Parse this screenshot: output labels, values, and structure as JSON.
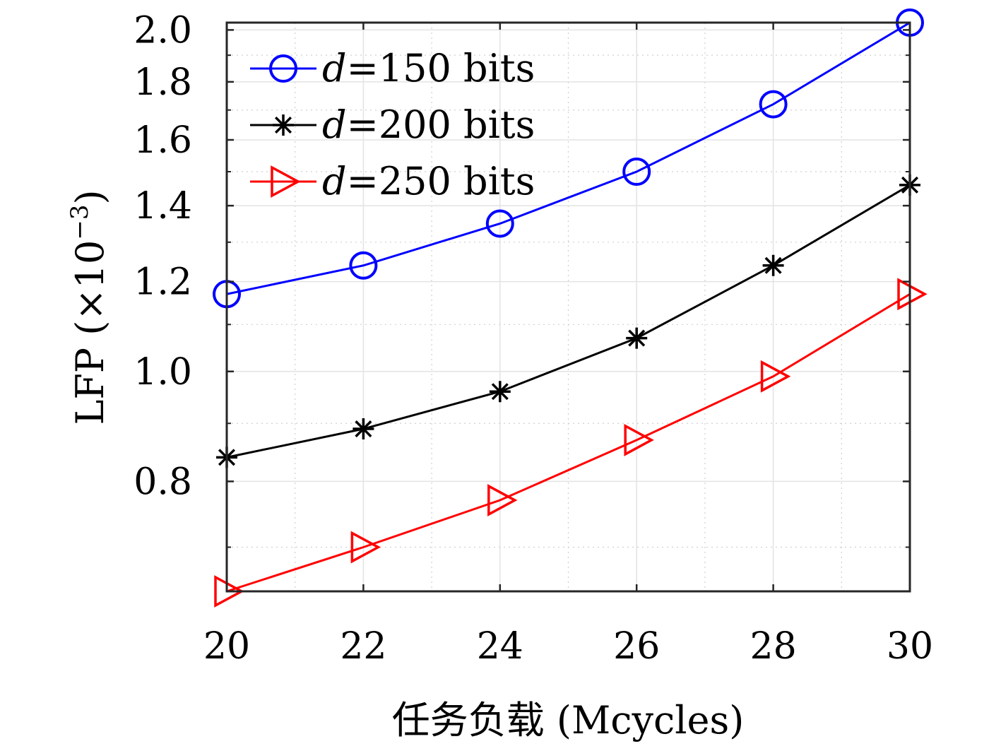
{
  "chart_data": {
    "type": "line",
    "xlabel": "任务负载 (Mcycles)",
    "ylabel": "LFP (×10",
    "ylabel_exp": "−3",
    "ylabel_close": ")",
    "x": [
      20,
      22,
      24,
      26,
      28,
      30
    ],
    "x_ticks": [
      "20",
      "22",
      "24",
      "26",
      "28",
      "30"
    ],
    "y_ticks": [
      "0.8",
      "1.0",
      "1.2",
      "1.4",
      "1.6",
      "1.8",
      "2.0"
    ],
    "y_tick_values": [
      0.8,
      1.0,
      1.2,
      1.4,
      1.6,
      1.8,
      2.0
    ],
    "xlim": [
      20,
      30
    ],
    "ylim": [
      0.64,
      2.03
    ],
    "y_scale": "log",
    "grid": true,
    "legend_position": "top-left",
    "series": [
      {
        "name": "d=150 bits",
        "legend_var": "d",
        "legend_rest": "=150 bits",
        "color": "#0000ff",
        "marker": "circle",
        "values": [
          1.17,
          1.24,
          1.35,
          1.5,
          1.72,
          2.03
        ]
      },
      {
        "name": "d=200 bits",
        "legend_var": "d",
        "legend_rest": "=200 bits",
        "color": "#000000",
        "marker": "asterisk",
        "values": [
          0.84,
          0.89,
          0.96,
          1.07,
          1.24,
          1.46
        ]
      },
      {
        "name": "d=250 bits",
        "legend_var": "d",
        "legend_rest": "=250 bits",
        "color": "#ff0000",
        "marker": "triangle-right",
        "values": [
          0.64,
          0.7,
          0.77,
          0.87,
          0.99,
          1.17
        ]
      }
    ]
  }
}
